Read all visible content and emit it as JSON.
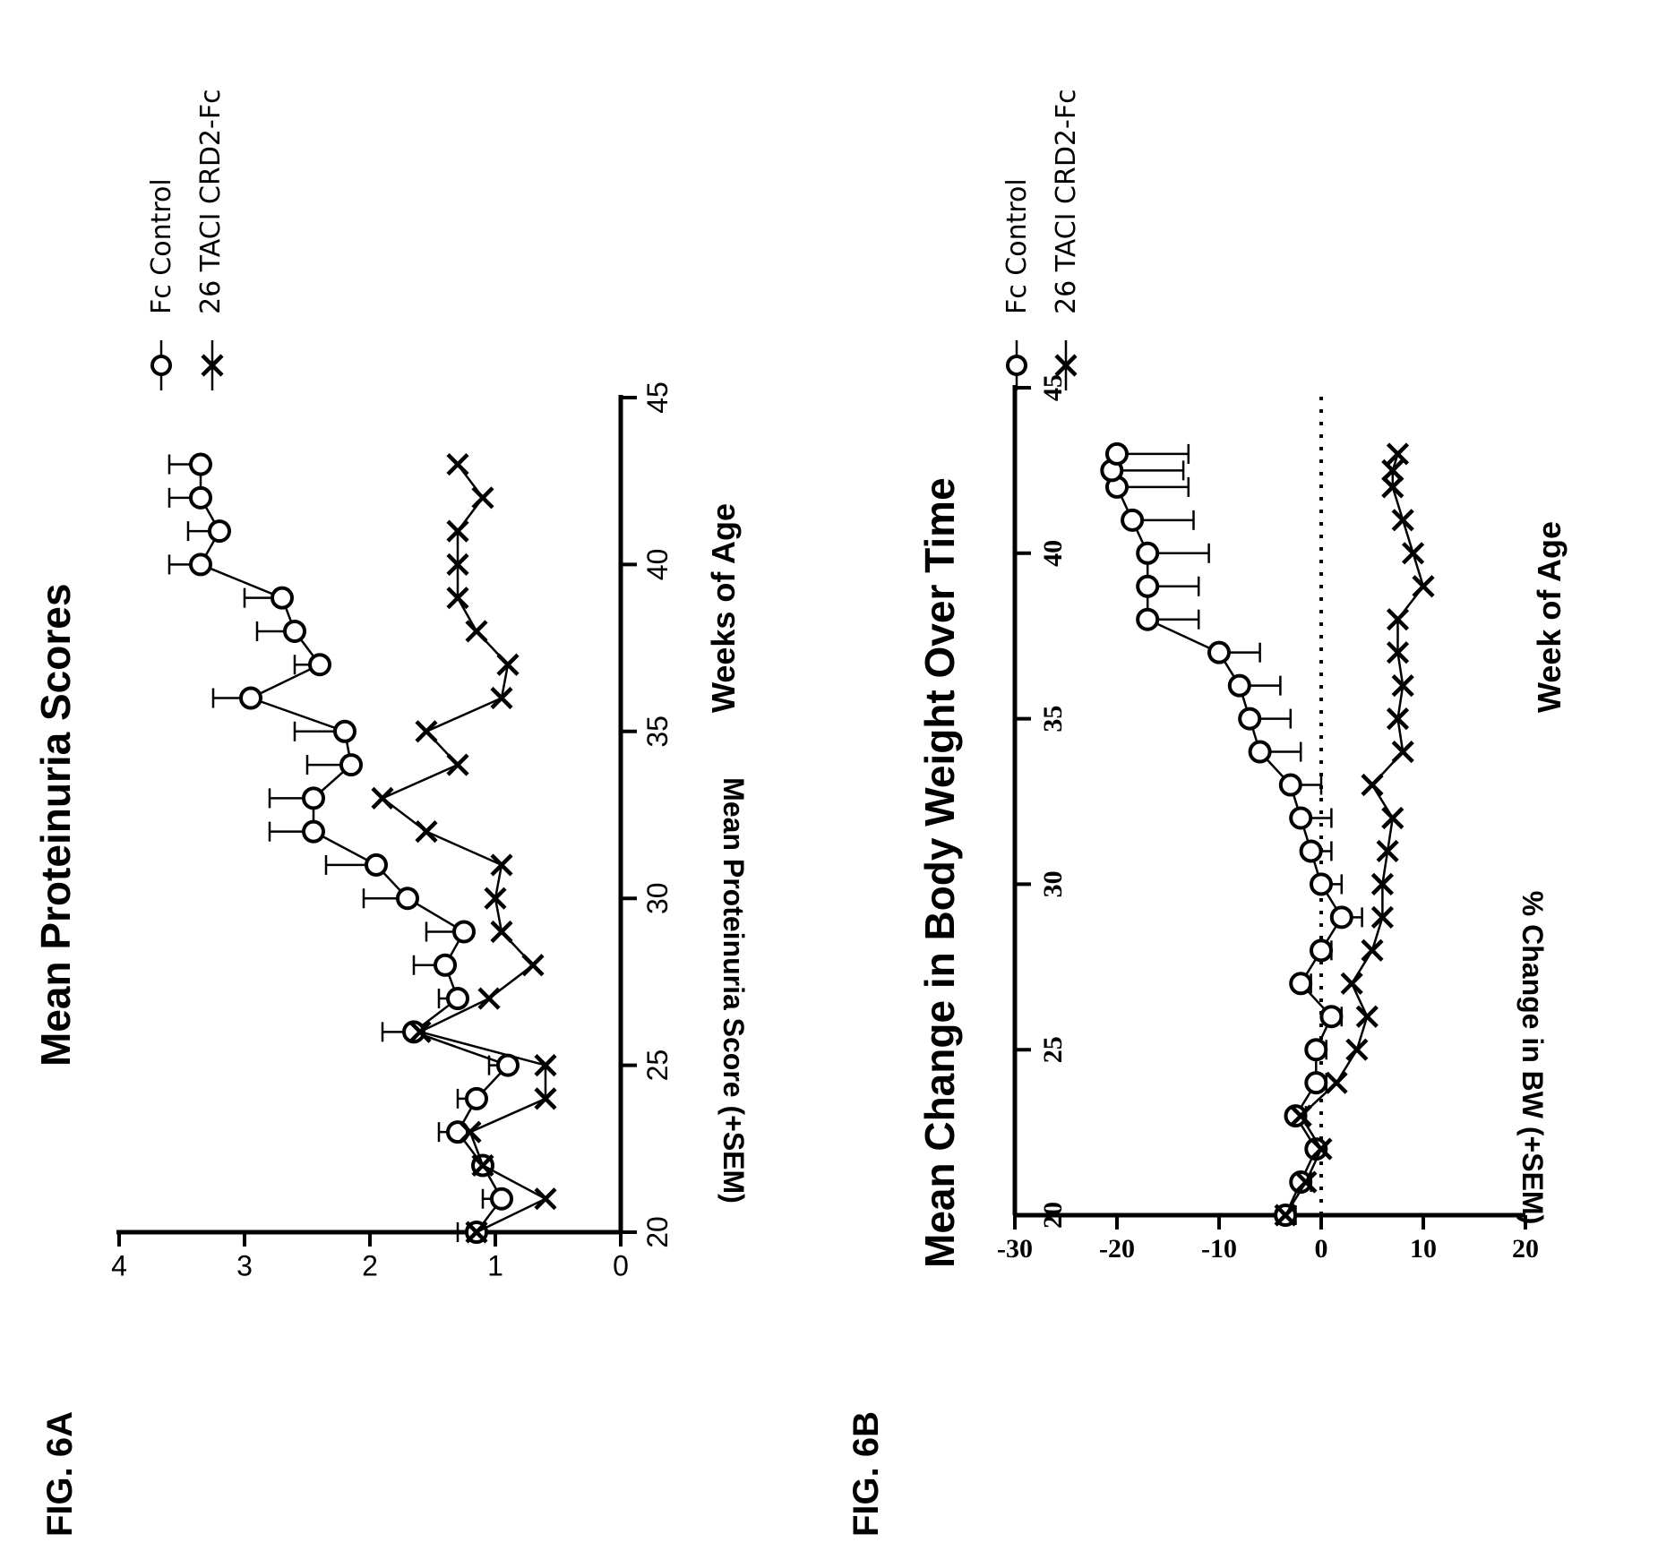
{
  "figure_a": {
    "label": "FIG. 6A",
    "title": "Mean Proteinuria Scores",
    "xlabel": "Weeks of Age",
    "ylabel": "Mean Proteinuria Score (+SEM)",
    "legend": [
      "Fc Control",
      "26 TACI CRD2-Fc"
    ]
  },
  "figure_b": {
    "label": "FIG. 6B",
    "title": "Mean Change in Body Weight Over Time",
    "xlabel": "Week of Age",
    "ylabel": "% Change in BW (+SEM)",
    "legend": [
      "Fc Control",
      "26 TACI CRD2-Fc"
    ]
  },
  "chart_data": [
    {
      "type": "line",
      "title": "Mean Proteinuria Scores",
      "xlabel": "Weeks of Age",
      "ylabel": "Mean Proteinuria Score (+SEM)",
      "xlim": [
        20,
        45
      ],
      "ylim": [
        0,
        4
      ],
      "xticks": [
        20,
        25,
        30,
        35,
        40,
        45
      ],
      "yticks": [
        0,
        1,
        2,
        3,
        4
      ],
      "legend_position": "top-right",
      "x": [
        20,
        21,
        22,
        23,
        24,
        25,
        26,
        27,
        28,
        29,
        30,
        31,
        32,
        33,
        34,
        35,
        36,
        37,
        38,
        39,
        40,
        41,
        42,
        43
      ],
      "series": [
        {
          "name": "Fc Control",
          "marker": "circle",
          "values": [
            1.15,
            0.95,
            1.1,
            1.3,
            1.15,
            0.9,
            1.65,
            1.3,
            1.4,
            1.25,
            1.7,
            1.95,
            2.45,
            2.45,
            2.15,
            2.2,
            2.95,
            2.4,
            2.6,
            2.7,
            3.35,
            3.2,
            3.35,
            3.35
          ],
          "sem": [
            0.15,
            0.15,
            0.05,
            0.15,
            0.15,
            0.15,
            0.25,
            0.15,
            0.25,
            0.3,
            0.35,
            0.4,
            0.35,
            0.35,
            0.35,
            0.4,
            0.3,
            0.2,
            0.3,
            0.3,
            0.25,
            0.25,
            0.25,
            0.25
          ]
        },
        {
          "name": "26 TACI CRD2-Fc",
          "marker": "x",
          "values": [
            1.15,
            0.6,
            1.1,
            1.2,
            0.6,
            0.6,
            1.6,
            1.05,
            0.7,
            0.95,
            1.0,
            0.95,
            1.55,
            1.9,
            1.3,
            1.55,
            0.95,
            0.9,
            1.15,
            1.3,
            1.3,
            1.3,
            1.1,
            1.3
          ]
        }
      ]
    },
    {
      "type": "line",
      "title": "Mean Change in Body Weight Over Time",
      "xlabel": "Week of Age",
      "ylabel": "% Change in BW (+SEM)",
      "xlim": [
        20,
        45
      ],
      "ylim": [
        -30,
        20
      ],
      "xticks": [
        20,
        25,
        30,
        35,
        40,
        45
      ],
      "yticks": [
        20,
        10,
        0,
        -10,
        -20,
        -30
      ],
      "reference_line": 0,
      "legend_position": "top-right",
      "x": [
        20,
        21,
        22,
        23,
        24,
        25,
        26,
        27,
        28,
        29,
        30,
        31,
        32,
        33,
        34,
        35,
        36,
        37,
        38,
        39,
        40,
        41,
        42,
        42.5,
        43
      ],
      "series": [
        {
          "name": "Fc Control",
          "marker": "circle",
          "values": [
            -3.5,
            -2,
            -0.5,
            -2.5,
            -0.5,
            -0.5,
            1,
            -2,
            0,
            2,
            0,
            -1,
            -2,
            -3,
            -6,
            -7,
            -8,
            -10,
            -17,
            -17,
            -17,
            -18.5,
            -20,
            -20.5,
            -20
          ],
          "sem": [
            1,
            1,
            0.5,
            1,
            1,
            1,
            1,
            1,
            1,
            2,
            2,
            2,
            3,
            3,
            4,
            4,
            4,
            4,
            5,
            5,
            6,
            6,
            7,
            7,
            7
          ]
        },
        {
          "name": "26 TACI CRD2-Fc",
          "marker": "x",
          "values": [
            -3.5,
            -1.5,
            0,
            -2,
            1.5,
            3.5,
            4.5,
            3,
            5,
            6,
            6,
            6.5,
            7,
            5,
            8,
            7.5,
            8,
            7.5,
            7.5,
            10,
            9,
            8,
            7,
            7,
            7.5
          ]
        }
      ]
    }
  ]
}
